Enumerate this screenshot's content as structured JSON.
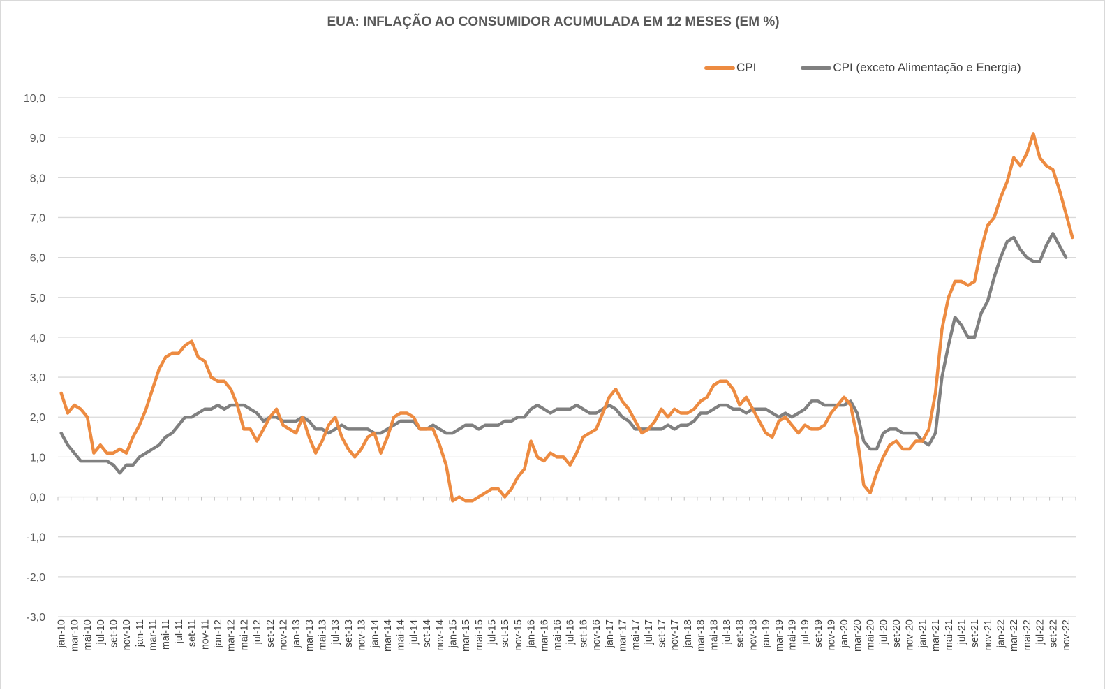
{
  "chart_data": {
    "type": "line",
    "title": "EUA: INFLAÇÃO AO CONSUMIDOR ACUMULADA EM 12 MESES (EM %)",
    "xlabel": "",
    "ylabel": "",
    "ylim": [
      -3.0,
      10.0
    ],
    "y_ticks": [
      "10,0",
      "9,0",
      "8,0",
      "7,0",
      "6,0",
      "5,0",
      "4,0",
      "3,0",
      "2,0",
      "1,0",
      "0,0",
      "-1,0",
      "-2,0",
      "-3,0"
    ],
    "y_tick_values": [
      10,
      9,
      8,
      7,
      6,
      5,
      4,
      3,
      2,
      1,
      0,
      -1,
      -2,
      -3
    ],
    "grid": true,
    "legend_position": "top-right",
    "x_tick_labels": [
      "jan-10",
      "mar-10",
      "mai-10",
      "jul-10",
      "set-10",
      "nov-10",
      "jan-11",
      "mar-11",
      "mai-11",
      "jul-11",
      "set-11",
      "nov-11",
      "jan-12",
      "mar-12",
      "mai-12",
      "jul-12",
      "set-12",
      "nov-12",
      "jan-13",
      "mar-13",
      "mai-13",
      "jul-13",
      "set-13",
      "nov-13",
      "jan-14",
      "mar-14",
      "mai-14",
      "jul-14",
      "set-14",
      "nov-14",
      "jan-15",
      "mar-15",
      "mai-15",
      "jul-15",
      "set-15",
      "nov-15",
      "jan-16",
      "mar-16",
      "mai-16",
      "jul-16",
      "set-16",
      "nov-16",
      "jan-17",
      "mar-17",
      "mai-17",
      "jul-17",
      "set-17",
      "nov-17",
      "jan-18",
      "mar-18",
      "mai-18",
      "jul-18",
      "set-18",
      "nov-18",
      "jan-19",
      "mar-19",
      "mai-19",
      "jul-19",
      "set-19",
      "nov-19",
      "jan-20",
      "mar-20",
      "mai-20",
      "jul-20",
      "set-20",
      "nov-20",
      "jan-21",
      "mar-21",
      "mai-21",
      "jul-21",
      "set-21",
      "nov-21",
      "jan-22",
      "mar-22",
      "mai-22",
      "jul-22",
      "set-22",
      "nov-22"
    ],
    "x_start": "jan-10",
    "x_end": "dez-22",
    "series": [
      {
        "name": "CPI",
        "color": "#ED8B41",
        "values": [
          2.6,
          2.1,
          2.3,
          2.2,
          2.0,
          1.1,
          1.3,
          1.1,
          1.1,
          1.2,
          1.1,
          1.5,
          1.8,
          2.2,
          2.7,
          3.2,
          3.5,
          3.6,
          3.6,
          3.8,
          3.9,
          3.5,
          3.4,
          3.0,
          2.9,
          2.9,
          2.7,
          2.3,
          1.7,
          1.7,
          1.4,
          1.7,
          2.0,
          2.2,
          1.8,
          1.7,
          1.6,
          2.0,
          1.5,
          1.1,
          1.4,
          1.8,
          2.0,
          1.5,
          1.2,
          1.0,
          1.2,
          1.5,
          1.6,
          1.1,
          1.5,
          2.0,
          2.1,
          2.1,
          2.0,
          1.7,
          1.7,
          1.7,
          1.3,
          0.8,
          -0.1,
          0.0,
          -0.1,
          -0.1,
          0.0,
          0.1,
          0.2,
          0.2,
          0.0,
          0.2,
          0.5,
          0.7,
          1.4,
          1.0,
          0.9,
          1.1,
          1.0,
          1.0,
          0.8,
          1.1,
          1.5,
          1.6,
          1.7,
          2.1,
          2.5,
          2.7,
          2.4,
          2.2,
          1.9,
          1.6,
          1.7,
          1.9,
          2.2,
          2.0,
          2.2,
          2.1,
          2.1,
          2.2,
          2.4,
          2.5,
          2.8,
          2.9,
          2.9,
          2.7,
          2.3,
          2.5,
          2.2,
          1.9,
          1.6,
          1.5,
          1.9,
          2.0,
          1.8,
          1.6,
          1.8,
          1.7,
          1.7,
          1.8,
          2.1,
          2.3,
          2.5,
          2.3,
          1.5,
          0.3,
          0.1,
          0.6,
          1.0,
          1.3,
          1.4,
          1.2,
          1.2,
          1.4,
          1.4,
          1.7,
          2.6,
          4.2,
          5.0,
          5.4,
          5.4,
          5.3,
          5.4,
          6.2,
          6.8,
          7.0,
          7.5,
          7.9,
          8.5,
          8.3,
          8.6,
          9.1,
          8.5,
          8.3,
          8.2,
          7.7,
          7.1,
          6.5
        ]
      },
      {
        "name": "CPI (exceto Alimentação e Energia)",
        "color": "#808080",
        "values": [
          1.6,
          1.3,
          1.1,
          0.9,
          0.9,
          0.9,
          0.9,
          0.9,
          0.8,
          0.6,
          0.8,
          0.8,
          1.0,
          1.1,
          1.2,
          1.3,
          1.5,
          1.6,
          1.8,
          2.0,
          2.0,
          2.1,
          2.2,
          2.2,
          2.3,
          2.2,
          2.3,
          2.3,
          2.3,
          2.2,
          2.1,
          1.9,
          2.0,
          2.0,
          1.9,
          1.9,
          1.9,
          2.0,
          1.9,
          1.7,
          1.7,
          1.6,
          1.7,
          1.8,
          1.7,
          1.7,
          1.7,
          1.7,
          1.6,
          1.6,
          1.7,
          1.8,
          1.9,
          1.9,
          1.9,
          1.7,
          1.7,
          1.8,
          1.7,
          1.6,
          1.6,
          1.7,
          1.8,
          1.8,
          1.7,
          1.8,
          1.8,
          1.8,
          1.9,
          1.9,
          2.0,
          2.0,
          2.2,
          2.3,
          2.2,
          2.1,
          2.2,
          2.2,
          2.2,
          2.3,
          2.2,
          2.1,
          2.1,
          2.2,
          2.3,
          2.2,
          2.0,
          1.9,
          1.7,
          1.7,
          1.7,
          1.7,
          1.7,
          1.8,
          1.7,
          1.8,
          1.8,
          1.9,
          2.1,
          2.1,
          2.2,
          2.3,
          2.3,
          2.2,
          2.2,
          2.1,
          2.2,
          2.2,
          2.2,
          2.1,
          2.0,
          2.1,
          2.0,
          2.1,
          2.2,
          2.4,
          2.4,
          2.3,
          2.3,
          2.3,
          2.3,
          2.4,
          2.1,
          1.4,
          1.2,
          1.2,
          1.6,
          1.7,
          1.7,
          1.6,
          1.6,
          1.6,
          1.4,
          1.3,
          1.6,
          3.0,
          3.8,
          4.5,
          4.3,
          4.0,
          4.0,
          4.6,
          4.9,
          5.5,
          6.0,
          6.4,
          6.5,
          6.2,
          6.0,
          5.9,
          5.9,
          6.3,
          6.6,
          6.3,
          6.0
        ]
      }
    ]
  }
}
